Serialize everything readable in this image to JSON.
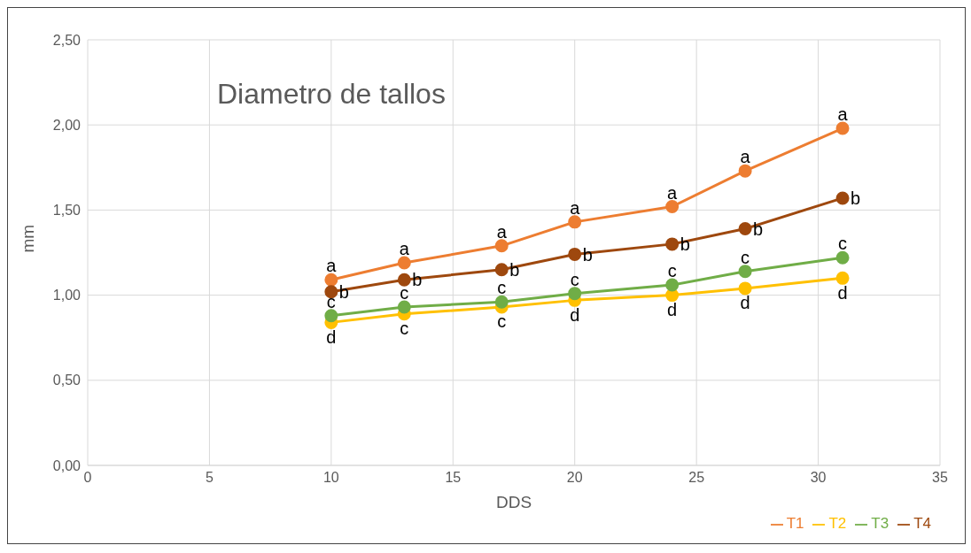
{
  "chart_data": {
    "type": "line",
    "title": "Diametro de tallos",
    "xlabel": "DDS",
    "ylabel": "mm",
    "x": [
      10,
      13,
      17,
      20,
      24,
      27,
      31
    ],
    "series": [
      {
        "name": "T1",
        "color": "#ed7d31",
        "values": [
          1.09,
          1.19,
          1.29,
          1.43,
          1.52,
          1.73,
          1.98
        ],
        "value_labels": [
          "a",
          "a",
          "a",
          "a",
          "a",
          "a",
          "a"
        ]
      },
      {
        "name": "T2",
        "color": "#ffc000",
        "values": [
          0.84,
          0.89,
          0.93,
          0.97,
          1.0,
          1.04,
          1.1
        ],
        "value_labels": [
          "d",
          "c",
          "c",
          "d",
          "d",
          "d",
          "d"
        ]
      },
      {
        "name": "T3",
        "color": "#70ad47",
        "values": [
          0.88,
          0.93,
          0.96,
          1.01,
          1.06,
          1.14,
          1.22
        ],
        "value_labels": [
          "c",
          "c",
          "c",
          "c",
          "c",
          "c",
          "c"
        ]
      },
      {
        "name": "T4",
        "color": "#9e480e",
        "values": [
          1.02,
          1.09,
          1.15,
          1.24,
          1.3,
          1.39,
          1.57
        ],
        "value_labels": [
          "b",
          "b",
          "b",
          "b",
          "b",
          "b",
          "b"
        ]
      }
    ],
    "xlim": [
      0,
      35
    ],
    "xticks": [
      0,
      5,
      10,
      15,
      20,
      25,
      30,
      35
    ],
    "ylim": [
      0,
      2.5
    ],
    "yticks": [
      {
        "value": 0,
        "label": "0,00"
      },
      {
        "value": 0.5,
        "label": "0,50"
      },
      {
        "value": 1,
        "label": "1,00"
      },
      {
        "value": 1.5,
        "label": "1,50"
      },
      {
        "value": 2,
        "label": "2,00"
      },
      {
        "value": 2.5,
        "label": "2,50"
      }
    ],
    "grid": true,
    "legend": "bottom right",
    "marker": "circle",
    "line_style": "solid"
  }
}
